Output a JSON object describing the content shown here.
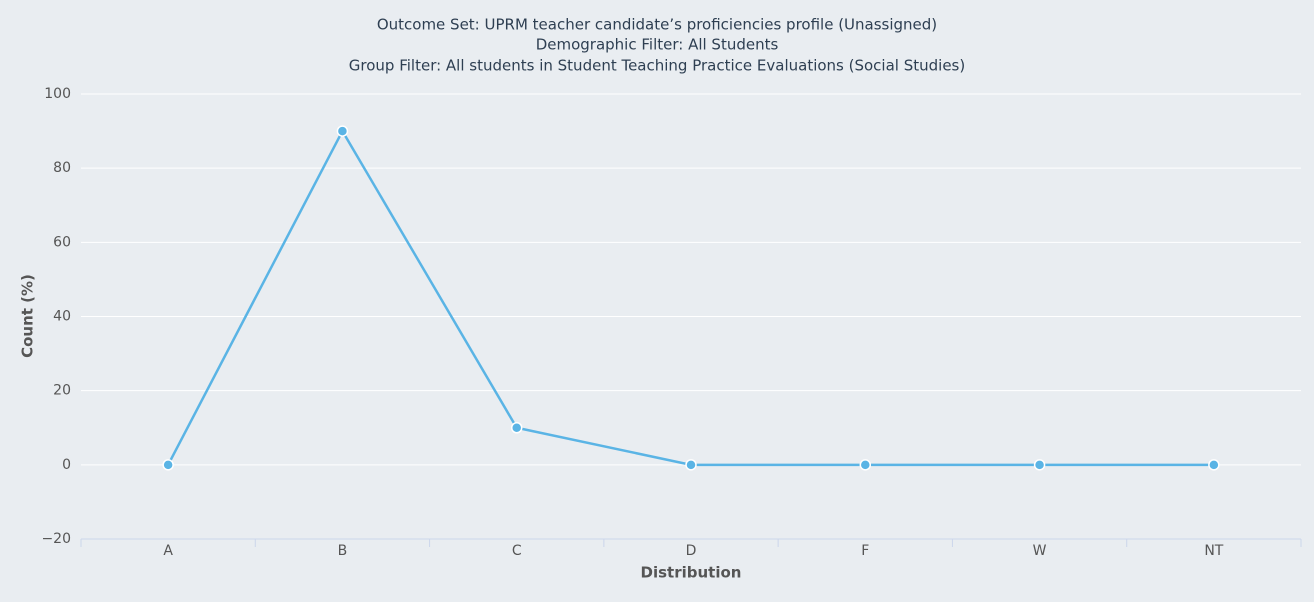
{
  "chart_data": {
    "type": "line",
    "title": [
      "Outcome Set: UPRM teacher candidate’s proficiencies profile (Unassigned)",
      "Demographic Filter: All Students",
      "Group Filter: All students in Student Teaching Practice Evaluations (Social Studies)"
    ],
    "x_label": "Distribution",
    "y_label": "Count (%)",
    "categories": [
      "A",
      "B",
      "C",
      "D",
      "F",
      "W",
      "NT"
    ],
    "series": [
      {
        "color": "#5ab4e5",
        "values": [
          0,
          90,
          10,
          0,
          0,
          0,
          0
        ]
      }
    ],
    "ylim": [
      -20,
      100
    ],
    "yticks": [
      {
        "value": -20,
        "label": "−20"
      },
      0,
      20,
      40,
      60,
      80,
      100
    ],
    "grid": true
  }
}
